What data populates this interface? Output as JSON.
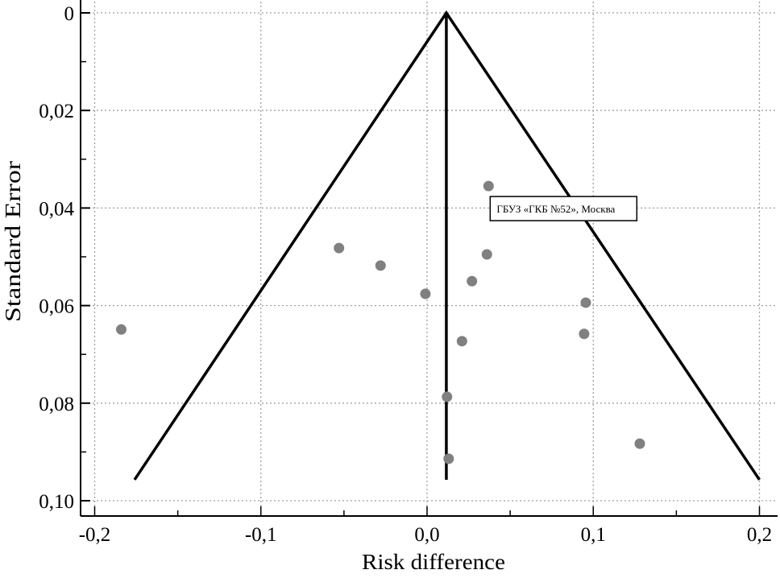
{
  "chart_data": {
    "type": "scatter",
    "title": "",
    "xlabel": "Risk difference",
    "ylabel": "Standard Error",
    "xlim": [
      -0.205,
      0.21
    ],
    "ylim": [
      0,
      0.1
    ],
    "y_inverted": true,
    "grid": true,
    "x_ticks": [
      -0.2,
      -0.1,
      0.0,
      0.1,
      0.2
    ],
    "x_tick_labels": [
      "-0,2",
      "-0,1",
      "0,0",
      "0,1",
      "0,2"
    ],
    "y_ticks": [
      0,
      0.02,
      0.04,
      0.06,
      0.08,
      0.1
    ],
    "y_tick_labels": [
      "0",
      "0,02",
      "0,04",
      "0,06",
      "0,08",
      "0,10"
    ],
    "points": [
      {
        "x": -0.184,
        "y": 0.0649
      },
      {
        "x": -0.053,
        "y": 0.0482
      },
      {
        "x": -0.028,
        "y": 0.0518
      },
      {
        "x": -0.001,
        "y": 0.0576
      },
      {
        "x": 0.027,
        "y": 0.055
      },
      {
        "x": 0.036,
        "y": 0.0495
      },
      {
        "x": 0.037,
        "y": 0.0355
      },
      {
        "x": 0.021,
        "y": 0.0673
      },
      {
        "x": 0.012,
        "y": 0.0787
      },
      {
        "x": 0.013,
        "y": 0.0914
      },
      {
        "x": 0.0955,
        "y": 0.0594
      },
      {
        "x": 0.0945,
        "y": 0.0658
      },
      {
        "x": 0.128,
        "y": 0.0883
      }
    ],
    "pooled_estimate": 0.0116,
    "funnel": {
      "apex": [
        0.0116,
        0
      ],
      "bottom_left": [
        -0.176,
        0.0957
      ],
      "bottom_right": [
        0.2,
        0.0957
      ]
    },
    "annotation": {
      "text": "ГБУЗ «ГКБ №52», Москва",
      "point_index": 6
    },
    "point_color": "#808080",
    "line_color": "#000000",
    "grid_color": "#a0a0a0"
  }
}
